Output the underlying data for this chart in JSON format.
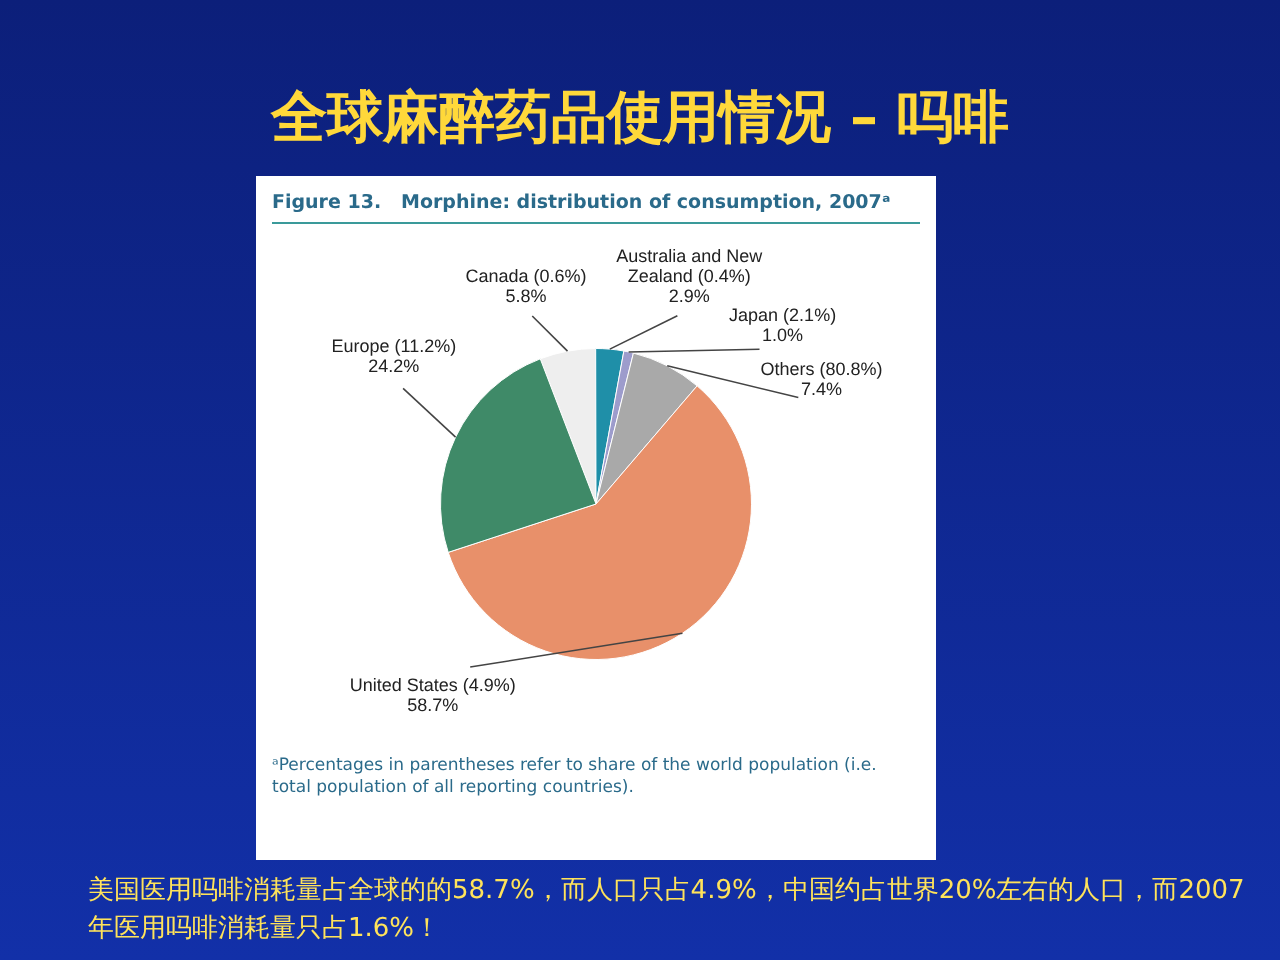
{
  "chart_data": {
    "type": "pie",
    "title": "全球麻醉药品使用情况 – 吗啡",
    "subtitle": "Figure 13.   Morphine: distribution of consumption, 2007ᵃ",
    "categories": [
      "Canada (0.6%)",
      "Australia and New Zealand (0.4%)",
      "Japan (2.1%)",
      "Others (80.8%)",
      "United States (4.9%)",
      "Europe (11.2%)"
    ],
    "values": [
      5.8,
      2.9,
      1.0,
      7.4,
      58.7,
      24.2
    ],
    "value_labels": [
      "5.8%",
      "2.9%",
      "1.0%",
      "7.4%",
      "58.7%",
      "24.2%"
    ],
    "colors": [
      "#eeeeee",
      "#1f8fa8",
      "#9d9ccc",
      "#a9a9a9",
      "#e8906a",
      "#3f8a68"
    ],
    "legend": false,
    "annotations": [
      "ᵃPercentages in parentheses refer to share of the world population (i.e. total population of all reporting countries).",
      "美国医用吗啡消耗量占全球的的58.7%，而人口只占4.9%，中国约占世界20%左右的人口，而2007年医用吗啡消耗量只占1.6%！"
    ]
  }
}
